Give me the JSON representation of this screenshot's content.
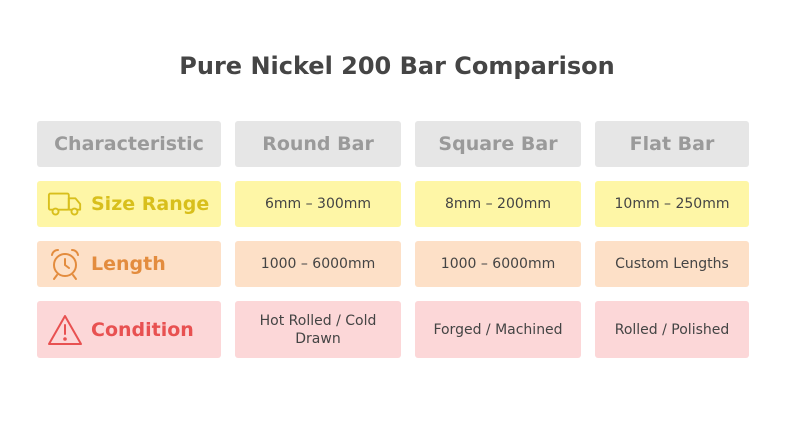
{
  "title": "Pure Nickel 200 Bar Comparison",
  "headers": [
    "Characteristic",
    "Round Bar",
    "Square Bar",
    "Flat Bar"
  ],
  "rows": [
    {
      "label": "Size Range",
      "icon": "truck-icon",
      "color": "#d8bf1c",
      "bg": "#fef6a6",
      "values": [
        "6mm – 300mm",
        "8mm – 200mm",
        "10mm – 250mm"
      ]
    },
    {
      "label": "Length",
      "icon": "alarm-clock-icon",
      "color": "#e38c3e",
      "bg": "#fde0c7",
      "values": [
        "1000 – 6000mm",
        "1000 – 6000mm",
        "Custom Lengths"
      ]
    },
    {
      "label": "Condition",
      "icon": "warning-icon",
      "color": "#e85151",
      "bg": "#fcd7d8",
      "values": [
        "Hot Rolled / Cold Drawn",
        "Forged / Machined",
        "Rolled / Polished"
      ]
    }
  ]
}
